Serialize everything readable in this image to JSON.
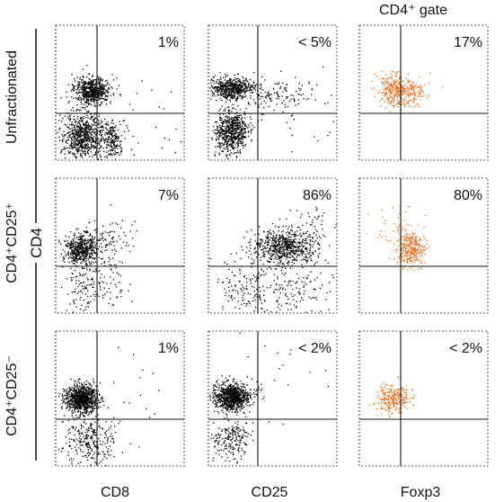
{
  "header": {
    "gate_label": "CD4⁺ gate"
  },
  "row_labels": [
    "Unfractionated",
    "CD4⁺CD25⁺",
    "CD4⁺CD25⁻"
  ],
  "y_axis_label": "CD4",
  "column_labels": [
    "CD8",
    "CD25",
    "Foxp3"
  ],
  "colors": {
    "dot_black": "#000000",
    "dot_orange": "#e86f1c",
    "frame": "#222222"
  },
  "chart_data": {
    "type": "scatter",
    "description_units": "flow cytometry dot plots; quadrant percentages as printed",
    "columns": [
      "CD8",
      "CD25",
      "Foxp3"
    ],
    "rows": [
      "Unfractionated",
      "CD4⁺CD25⁺",
      "CD4⁺CD25⁻"
    ],
    "panels": [
      {
        "row": 0,
        "col": 0,
        "stat": "1%",
        "color": "dot_black"
      },
      {
        "row": 0,
        "col": 1,
        "stat": "< 5%",
        "color": "dot_black"
      },
      {
        "row": 0,
        "col": 2,
        "stat": "17%",
        "color": "dot_orange"
      },
      {
        "row": 1,
        "col": 0,
        "stat": "7%",
        "color": "dot_black"
      },
      {
        "row": 1,
        "col": 1,
        "stat": "86%",
        "color": "dot_black"
      },
      {
        "row": 1,
        "col": 2,
        "stat": "80%",
        "color": "dot_orange"
      },
      {
        "row": 2,
        "col": 0,
        "stat": "1%",
        "color": "dot_black"
      },
      {
        "row": 2,
        "col": 1,
        "stat": "< 2%",
        "color": "dot_black"
      },
      {
        "row": 2,
        "col": 2,
        "stat": "< 2%",
        "color": "dot_orange"
      }
    ]
  }
}
